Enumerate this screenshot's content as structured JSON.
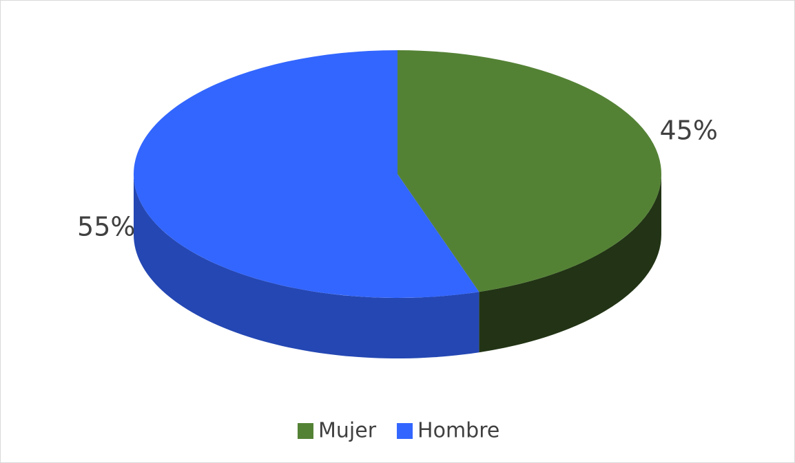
{
  "chart_data": {
    "type": "pie",
    "categories": [
      "Mujer",
      "Hombre"
    ],
    "values": [
      45,
      55
    ],
    "value_labels": [
      "45%",
      "55%"
    ],
    "colors": [
      "#548235",
      "#3366ff"
    ],
    "legend": "bottom"
  }
}
